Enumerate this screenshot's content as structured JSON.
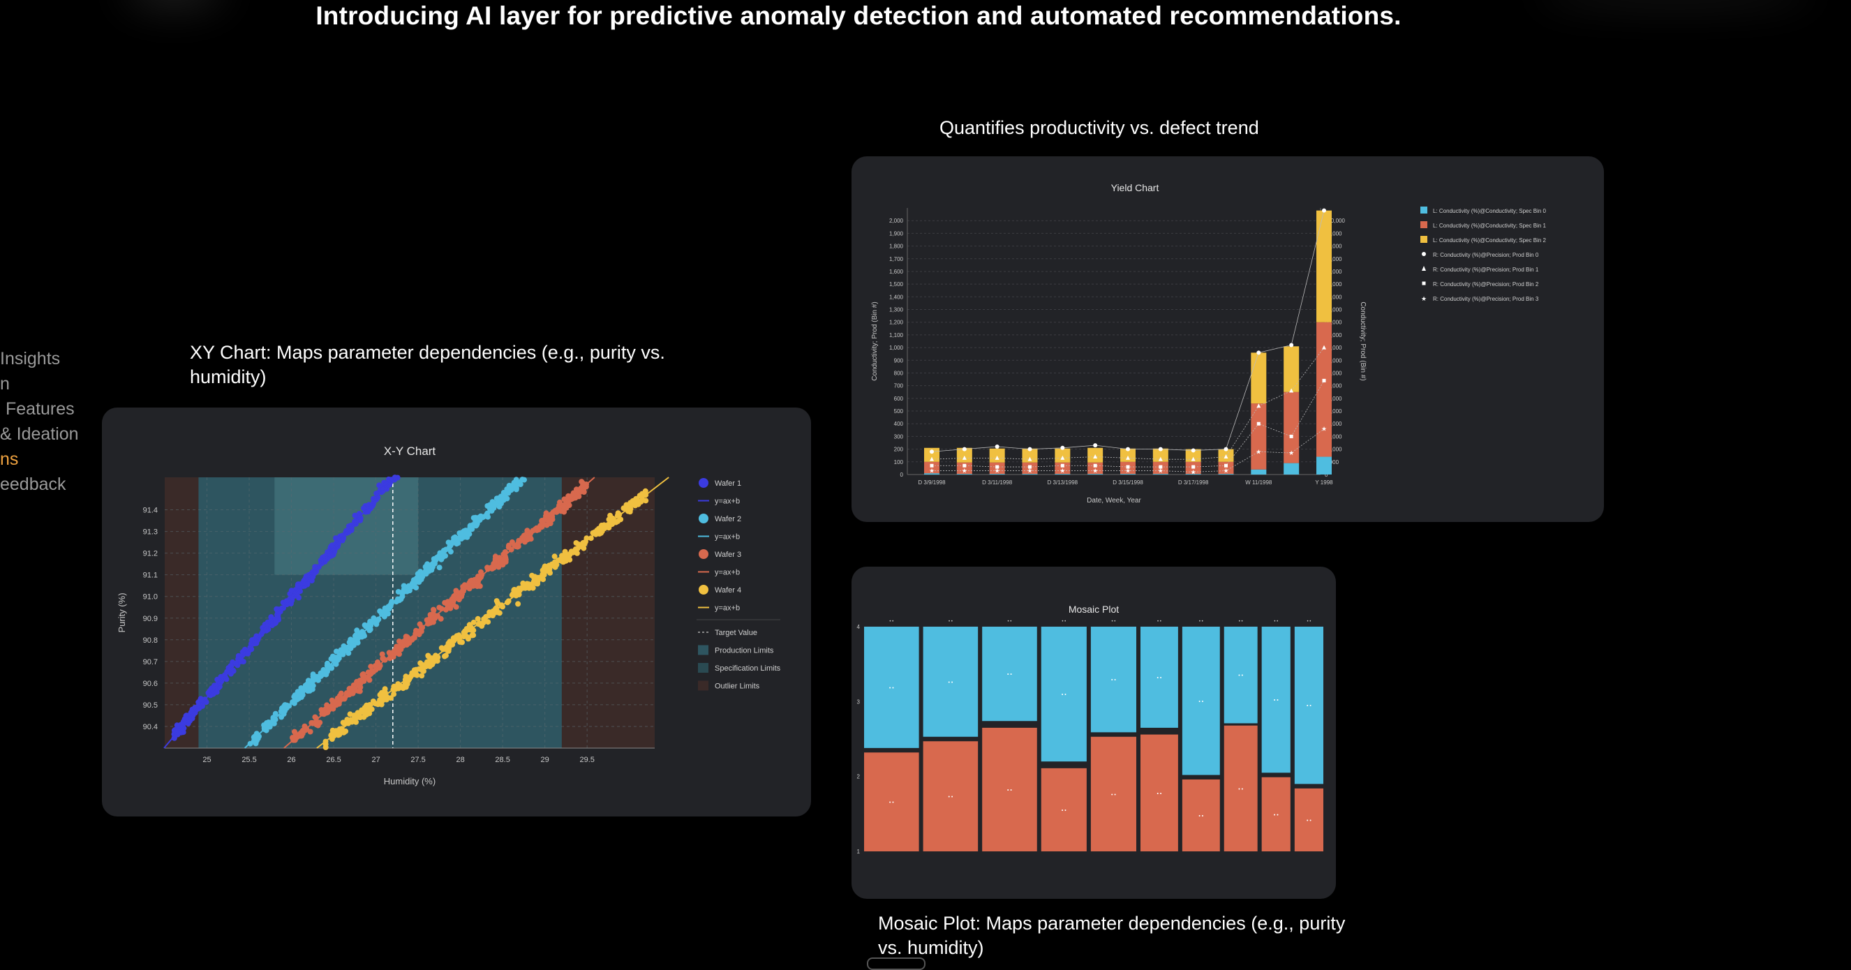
{
  "headline": "Introducing AI layer for predictive anomaly detection and automated recommendations.",
  "side_nav": {
    "items": [
      {
        "label": "Insights",
        "active": false
      },
      {
        "label": "n",
        "active": false
      },
      {
        "label": "Features",
        "active": false
      },
      {
        "label": "& Ideation",
        "active": false
      },
      {
        "label": "ns",
        "active": true
      },
      {
        "label": "eedback",
        "active": false
      }
    ],
    "active_color": "#f0a340"
  },
  "captions": {
    "xy": "XY Chart: Maps parameter dependencies (e.g., purity vs. humidity)",
    "yield": "Quantifies productivity vs. defect trend",
    "mosaic": "Mosaic Plot: Maps parameter dependencies (e.g., purity vs. humidity)"
  },
  "colors": {
    "panel_bg": "#222327",
    "wafer1": "#3b3be0",
    "wafer2": "#4fbde0",
    "wafer3": "#d8694e",
    "wafer4": "#f0c040",
    "production_limits": "#2e5560",
    "specification_limits": "#2a4a52",
    "outlier_limits": "#3a2a28"
  },
  "chart_data": [
    {
      "type": "scatter",
      "title": "X-Y Chart",
      "xlabel": "Humidity (%)",
      "ylabel": "Purity (%)",
      "xlim": [
        24.5,
        30.3
      ],
      "ylim": [
        90.3,
        91.55
      ],
      "x_ticks": [
        "25",
        "25.5",
        "26",
        "26.5",
        "27",
        "27.5",
        "28",
        "28.5",
        "29",
        "29.5"
      ],
      "y_ticks": [
        "90.4",
        "90.5",
        "90.6",
        "90.7",
        "90.8",
        "90.9",
        "91.0",
        "91.1",
        "91.2",
        "91.3",
        "91.4"
      ],
      "grid": true,
      "legend_position": "right",
      "target_value_x": 27.2,
      "production_limits_x": [
        24.9,
        29.2
      ],
      "specification_limits_box": {
        "x": [
          25.8,
          27.5
        ],
        "y": [
          91.1,
          91.55
        ]
      },
      "series": [
        {
          "name": "Wafer 1",
          "fit_name": "y=ax+b",
          "x_range": [
            24.6,
            27.3
          ],
          "slope": 0.46,
          "intercept_at_x0": 90.35
        },
        {
          "name": "Wafer 2",
          "fit_name": "y=ax+b",
          "x_range": [
            25.5,
            28.9
          ],
          "slope": 0.38,
          "intercept_at_x0": 90.32
        },
        {
          "name": "Wafer 3",
          "fit_name": "y=ax+b",
          "x_range": [
            26.0,
            29.5
          ],
          "slope": 0.34,
          "intercept_at_x0": 90.33
        },
        {
          "name": "Wafer 4",
          "fit_name": "y=ax+b",
          "x_range": [
            26.4,
            30.2
          ],
          "slope": 0.3,
          "intercept_at_x0": 90.33
        }
      ],
      "legend": [
        "Wafer 1",
        "y=ax+b",
        "Wafer 2",
        "y=ax+b",
        "Wafer 3",
        "y=ax+b",
        "Wafer 4",
        "y=ax+b",
        "Target Value",
        "Production Limits",
        "Specification Limits",
        "Outlier Limits"
      ]
    },
    {
      "type": "bar",
      "title": "Yield Chart",
      "xlabel": "Date, Week, Year",
      "ylabel": "Conductivity; Prod (Bin #)",
      "ylabel_right": "Conductivity; Prod (Bin #)",
      "ylim": [
        0,
        2100
      ],
      "ylim_right": [
        0,
        105000
      ],
      "y_ticks": [
        "0",
        "100",
        "200",
        "300",
        "400",
        "500",
        "600",
        "700",
        "800",
        "900",
        "1,000",
        "1,100",
        "1,200",
        "1,300",
        "1,400",
        "1,500",
        "1,600",
        "1,700",
        "1,800",
        "1,900",
        "2,000"
      ],
      "y_ticks_right": [
        "0",
        "5,000",
        "10,000",
        "15,000",
        "20,000",
        "25,000",
        "30,000",
        "35,000",
        "40,000",
        "45,000",
        "50,000",
        "55,000",
        "60,000",
        "65,000",
        "70,000",
        "75,000",
        "80,000",
        "85,000",
        "90,000",
        "95,000",
        "100,000"
      ],
      "x_tick_labels": [
        "D 3/9/1998",
        "D 3/11/1998",
        "D 3/13/1998",
        "D 3/15/1998",
        "D 3/17/1998",
        "W 11/1998",
        "Y 1998"
      ],
      "categories": [
        "D 3/9/1998",
        "",
        "D 3/11/1998",
        "",
        "D 3/13/1998",
        "",
        "D 3/15/1998",
        "",
        "D 3/17/1998",
        "",
        "W 11/1998",
        "",
        "Y 1998"
      ],
      "series": [
        {
          "name": "L: Conductivity (%)@Conductivity; Spec Bin 0",
          "values": [
            10,
            5,
            5,
            5,
            5,
            5,
            5,
            5,
            5,
            5,
            40,
            90,
            140
          ]
        },
        {
          "name": "L: Conductivity (%)@Conductivity; Spec Bin 1",
          "values": [
            90,
            90,
            90,
            90,
            90,
            90,
            95,
            95,
            95,
            95,
            520,
            560,
            1060
          ]
        },
        {
          "name": "L: Conductivity (%)@Conductivity; Spec Bin 2",
          "values": [
            110,
            115,
            110,
            110,
            110,
            115,
            105,
            105,
            100,
            100,
            400,
            360,
            880
          ]
        },
        {
          "name": "R: Conductivity (%)@Precision; Prod Bin 0",
          "values": [
            9000,
            10000,
            11000,
            10000,
            10500,
            11500,
            10000,
            10000,
            9500,
            10000,
            48000,
            51000,
            104000
          ]
        },
        {
          "name": "R: Conductivity (%)@Precision; Prod Bin 1",
          "values": [
            6000,
            6500,
            6500,
            6000,
            6500,
            7000,
            6500,
            6000,
            6000,
            7000,
            27000,
            33000,
            50000
          ]
        },
        {
          "name": "R: Conductivity (%)@Precision; Prod Bin 2",
          "values": [
            3500,
            3500,
            3000,
            3000,
            3500,
            3500,
            3000,
            3000,
            3000,
            3500,
            20000,
            15000,
            37000
          ]
        },
        {
          "name": "R: Conductivity (%)@Precision; Prod Bin 3",
          "values": [
            1500,
            1500,
            1500,
            1500,
            1500,
            1500,
            1500,
            1500,
            1000,
            1500,
            9000,
            8500,
            18000
          ]
        }
      ],
      "legend_position": "right"
    },
    {
      "type": "bar",
      "title": "Mosaic Plot",
      "y_ticks": [
        "1",
        "2",
        "3",
        "4"
      ],
      "ylim": [
        1,
        4
      ],
      "columns": [
        {
          "width": 0.105,
          "blue": 0.54,
          "orange": 0.44
        },
        {
          "width": 0.105,
          "blue": 0.49,
          "orange": 0.49
        },
        {
          "width": 0.105,
          "blue": 0.42,
          "orange": 0.55
        },
        {
          "width": 0.087,
          "blue": 0.6,
          "orange": 0.37
        },
        {
          "width": 0.087,
          "blue": 0.47,
          "orange": 0.51
        },
        {
          "width": 0.072,
          "blue": 0.45,
          "orange": 0.52
        },
        {
          "width": 0.072,
          "blue": 0.66,
          "orange": 0.32
        },
        {
          "width": 0.064,
          "blue": 0.43,
          "orange": 0.56
        },
        {
          "width": 0.055,
          "blue": 0.65,
          "orange": 0.33
        },
        {
          "width": 0.055,
          "blue": 0.7,
          "orange": 0.28
        }
      ]
    }
  ],
  "xy_legend_labels": [
    "Wafer 1",
    "y=ax+b",
    "Wafer 2",
    "y=ax+b",
    "Wafer 3",
    "y=ax+b",
    "Wafer 4",
    "y=ax+b",
    "Target Value",
    "Production Limits",
    "Specification Limits",
    "Outlier Limits"
  ]
}
